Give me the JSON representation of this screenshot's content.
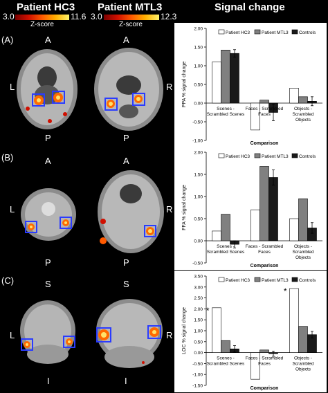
{
  "headers": {
    "hc3": "Patient HC3",
    "mtl3": "Patient MTL3",
    "signal": "Signal change"
  },
  "colorbars": {
    "hc3": {
      "min": "3.0",
      "max": "11.6",
      "label": "Z-score"
    },
    "mtl3": {
      "min": "3.0",
      "max": "12.3",
      "label": "Z-score"
    }
  },
  "panels": [
    {
      "label": "(A)",
      "top": "A",
      "bottom": "P",
      "left": "L",
      "right": "R"
    },
    {
      "label": "(B)",
      "top": "A",
      "bottom": "P",
      "left": "L",
      "right": "R"
    },
    {
      "label": "(C)",
      "top": "S",
      "bottom": "I",
      "left": "L",
      "right": "R"
    }
  ],
  "colors": {
    "patient_hc3": "#ffffff",
    "patient_mtl3": "#808080",
    "controls": "#1a1a1a",
    "roi_box": "#2a3bff"
  },
  "chart_data": [
    {
      "type": "bar",
      "ylabel": "PPA % signal change",
      "xlabel": "Comparison",
      "ylim": [
        -1.0,
        2.0
      ],
      "yticks": [
        "2.00",
        "1.50",
        "1.00",
        "0.50",
        "0.00",
        "-0.50",
        "-1.00"
      ],
      "categories": [
        [
          "Scenes -",
          "Scrambled Scenes"
        ],
        [
          "Faces - Scrambled",
          "Faces"
        ],
        [
          "Objects -",
          "Scrambled",
          "Objects"
        ]
      ],
      "series": [
        {
          "name": "Patient HC3",
          "values": [
            1.1,
            -0.72,
            0.4
          ]
        },
        {
          "name": "Patient MTL3",
          "values": [
            1.42,
            0.08,
            0.17
          ]
        },
        {
          "name": "Controls",
          "values": [
            1.33,
            -0.25,
            0.05
          ]
        }
      ],
      "controls_error": [
        0.1,
        0.22,
        0.12
      ],
      "asterisks": []
    },
    {
      "type": "bar",
      "ylabel": "FFA % signal change",
      "xlabel": "Comparison",
      "ylim": [
        -0.5,
        2.0
      ],
      "yticks": [
        "2.00",
        "1.50",
        "1.00",
        "0.50",
        "0.00",
        "-0.50"
      ],
      "categories": [
        [
          "Scenes -",
          "Scrambled Scenes"
        ],
        [
          "Faces - Scrambled",
          "Faces"
        ],
        [
          "Objects -",
          "Scrambled",
          "Objects"
        ]
      ],
      "series": [
        {
          "name": "Patient HC3",
          "values": [
            0.22,
            0.7,
            0.5
          ]
        },
        {
          "name": "Patient MTL3",
          "values": [
            0.6,
            1.68,
            0.95
          ]
        },
        {
          "name": "Controls",
          "values": [
            -0.08,
            1.43,
            0.29
          ]
        }
      ],
      "controls_error": [
        0.08,
        0.17,
        0.12
      ],
      "asterisks": []
    },
    {
      "type": "bar",
      "ylabel": "LOC % signal change",
      "xlabel": "Comparison",
      "ylim": [
        -1.5,
        3.5
      ],
      "yticks": [
        "3.50",
        "3.00",
        "2.50",
        "2.00",
        "1.50",
        "1.00",
        "0.50",
        "0.00",
        "-0.50",
        "-1.00",
        "-1.50"
      ],
      "categories": [
        [
          "Scenes -",
          "Scrambled Scenes"
        ],
        [
          "Faces - Scrambled",
          "Faces"
        ],
        [
          "Objects -",
          "Scrambled",
          "Objects"
        ]
      ],
      "series": [
        {
          "name": "Patient HC3",
          "values": [
            2.05,
            -1.22,
            2.93
          ]
        },
        {
          "name": "Patient MTL3",
          "values": [
            0.55,
            0.12,
            1.2
          ]
        },
        {
          "name": "Controls",
          "values": [
            0.17,
            -0.05,
            0.82
          ]
        }
      ],
      "controls_error": [
        0.15,
        0.12,
        0.15
      ],
      "asterisks": [
        {
          "text": "*",
          "category": 0
        },
        {
          "text": "*",
          "category": 2
        }
      ]
    }
  ]
}
